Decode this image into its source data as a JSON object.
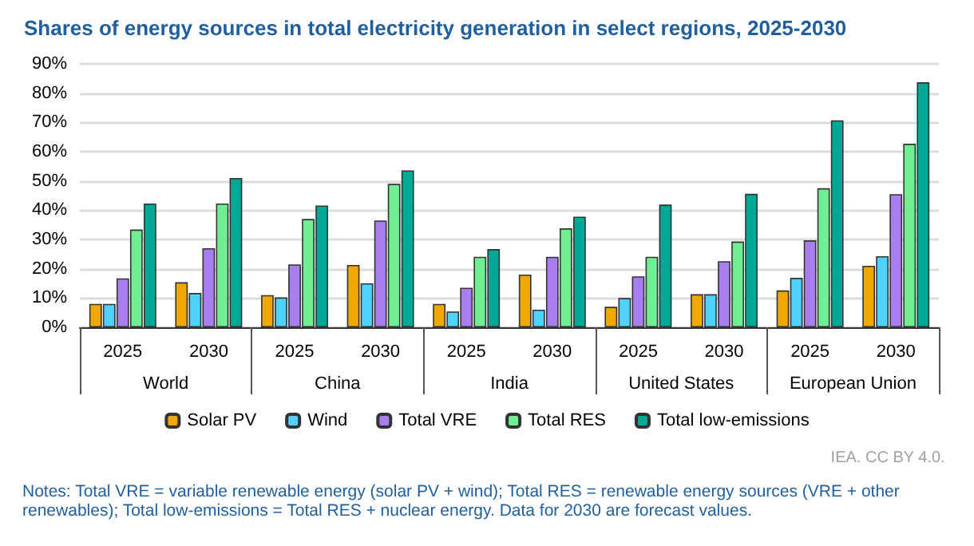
{
  "chart_data": {
    "type": "bar",
    "title": "Shares of energy sources in total electricity generation in select regions, 2025-2030",
    "categories": [
      "2025",
      "2030",
      "2025",
      "2030",
      "2025",
      "2030",
      "2025",
      "2030",
      "2025",
      "2030"
    ],
    "series": [
      {
        "name": "Solar PV",
        "color": "#f0a800",
        "values": [
          8,
          15.4,
          11,
          21.3,
          8,
          18,
          7,
          11.3,
          12.6,
          21
        ]
      },
      {
        "name": "Wind",
        "color": "#4fd2ff",
        "values": [
          8,
          11.7,
          10.2,
          15,
          5.4,
          6,
          10,
          11.3,
          16.9,
          24.3
        ]
      },
      {
        "name": "Total VRE",
        "color": "#a97ef0",
        "values": [
          16.7,
          27,
          21.5,
          36.5,
          13.5,
          24.1,
          17.4,
          22.6,
          29.7,
          45.5
        ]
      },
      {
        "name": "Total RES",
        "color": "#6fee92",
        "values": [
          33.4,
          42.3,
          37,
          49,
          24.1,
          33.8,
          24.1,
          29.3,
          47.5,
          62.7
        ]
      },
      {
        "name": "Total low-emissions",
        "color": "#00a896",
        "values": [
          42.3,
          51,
          41.6,
          53.6,
          26.7,
          37.8,
          41.9,
          45.6,
          70.7,
          83.7
        ]
      }
    ],
    "ylim": [
      0,
      90
    ],
    "yticks": [
      {
        "value": 0,
        "label": "0%"
      },
      {
        "value": 10,
        "label": "10%"
      },
      {
        "value": 20,
        "label": "20%"
      },
      {
        "value": 30,
        "label": "30%"
      },
      {
        "value": 40,
        "label": "40%"
      },
      {
        "value": 50,
        "label": "50%"
      },
      {
        "value": 60,
        "label": "60%"
      },
      {
        "value": 70,
        "label": "70%"
      },
      {
        "value": 80,
        "label": "80%"
      },
      {
        "value": 90,
        "label": "90%"
      }
    ],
    "grid": "y",
    "legend": "bottom",
    "annotations": [
      "World",
      "China",
      "India",
      "United States",
      "European Union",
      "IEA. CC BY 4.0.",
      "Notes: Total VRE = variable renewable energy (solar PV + wind); Total RES = renewable energy sources (VRE + other renewables); Total low-emissions = Total RES + nuclear energy. Data for 2030 are forecast values."
    ]
  }
}
